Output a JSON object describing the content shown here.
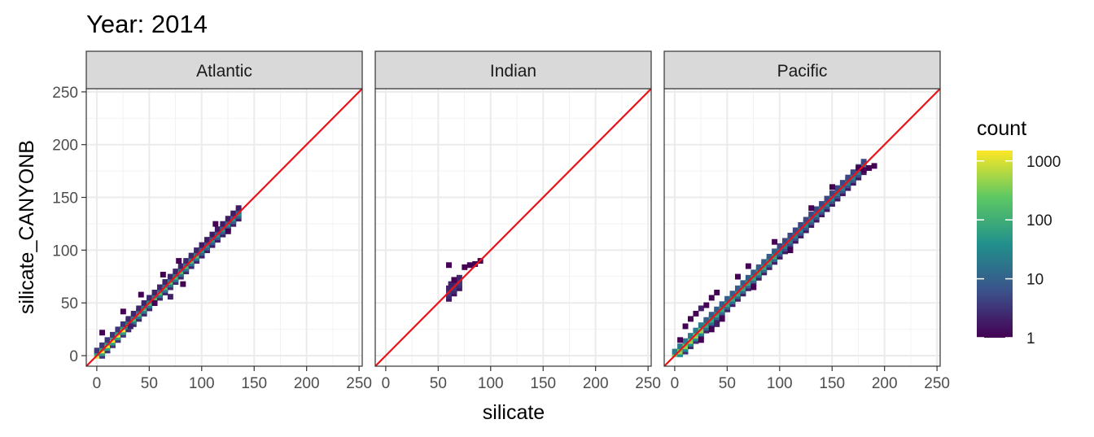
{
  "chart_data": {
    "type": "heatmap",
    "title": "Year: 2014",
    "xlabel": "silicate",
    "ylabel": "silicate_CANYONB",
    "xlim": [
      -10,
      253
    ],
    "ylim": [
      -10,
      253
    ],
    "x_ticks": [
      0,
      50,
      100,
      150,
      200,
      250
    ],
    "y_ticks": [
      0,
      50,
      100,
      150,
      200,
      250
    ],
    "x_tick_labels": [
      "0",
      "50",
      "100",
      "150",
      "200",
      "250"
    ],
    "y_tick_labels": [
      "0",
      "50",
      "100",
      "150",
      "200",
      "250"
    ],
    "grid": true,
    "reference_line": {
      "slope": 1,
      "intercept": 0,
      "color": "#e8131b"
    },
    "bin_width": 5,
    "legend": {
      "title": "count",
      "scale": "log10",
      "range": [
        1,
        1500
      ],
      "tick_values": [
        1,
        10,
        100,
        1000
      ],
      "tick_labels": [
        "1",
        "10",
        "100",
        "1000"
      ],
      "placement": "right",
      "colors": [
        "#440154",
        "#3b528b",
        "#21908c",
        "#5dc863",
        "#fde725"
      ]
    },
    "panels": [
      {
        "name": "Atlantic",
        "x_range": [
          0,
          135
        ],
        "spread": 5,
        "cells": [
          {
            "x": 5,
            "y": 22,
            "count": 1
          },
          {
            "x": 25,
            "y": 42,
            "count": 1
          },
          {
            "x": 32,
            "y": 28,
            "count": 2
          },
          {
            "x": 42,
            "y": 58,
            "count": 1
          },
          {
            "x": 55,
            "y": 50,
            "count": 1
          },
          {
            "x": 63,
            "y": 77,
            "count": 1
          },
          {
            "x": 70,
            "y": 56,
            "count": 2
          },
          {
            "x": 78,
            "y": 90,
            "count": 1
          },
          {
            "x": 82,
            "y": 68,
            "count": 1
          },
          {
            "x": 113,
            "y": 125,
            "count": 1
          },
          {
            "x": 125,
            "y": 118,
            "count": 1
          }
        ]
      },
      {
        "name": "Indian",
        "x_range": [
          60,
          70
        ],
        "spread": 6,
        "cells": [
          {
            "x": 60,
            "y": 86,
            "count": 1
          },
          {
            "x": 62,
            "y": 68,
            "count": 2
          },
          {
            "x": 65,
            "y": 72,
            "count": 1
          },
          {
            "x": 75,
            "y": 84,
            "count": 1
          },
          {
            "x": 80,
            "y": 86,
            "count": 1
          },
          {
            "x": 85,
            "y": 87,
            "count": 1
          },
          {
            "x": 90,
            "y": 90,
            "count": 1
          }
        ]
      },
      {
        "name": "Pacific",
        "x_range": [
          0,
          180
        ],
        "spread": 6,
        "cells": [
          {
            "x": 5,
            "y": 15,
            "count": 1
          },
          {
            "x": 10,
            "y": 28,
            "count": 1
          },
          {
            "x": 15,
            "y": 35,
            "count": 1
          },
          {
            "x": 20,
            "y": 40,
            "count": 1
          },
          {
            "x": 25,
            "y": 45,
            "count": 2
          },
          {
            "x": 30,
            "y": 48,
            "count": 1
          },
          {
            "x": 35,
            "y": 55,
            "count": 1
          },
          {
            "x": 40,
            "y": 60,
            "count": 1
          },
          {
            "x": 25,
            "y": 15,
            "count": 1
          },
          {
            "x": 35,
            "y": 25,
            "count": 1
          },
          {
            "x": 40,
            "y": 30,
            "count": 2
          },
          {
            "x": 45,
            "y": 35,
            "count": 1
          },
          {
            "x": 60,
            "y": 75,
            "count": 1
          },
          {
            "x": 70,
            "y": 85,
            "count": 1
          },
          {
            "x": 75,
            "y": 65,
            "count": 1
          },
          {
            "x": 95,
            "y": 108,
            "count": 1
          },
          {
            "x": 110,
            "y": 100,
            "count": 1
          },
          {
            "x": 130,
            "y": 140,
            "count": 1
          },
          {
            "x": 150,
            "y": 160,
            "count": 1
          },
          {
            "x": 175,
            "y": 178,
            "count": 1
          },
          {
            "x": 180,
            "y": 176,
            "count": 1
          },
          {
            "x": 185,
            "y": 178,
            "count": 1
          },
          {
            "x": 190,
            "y": 180,
            "count": 1
          }
        ]
      }
    ]
  }
}
